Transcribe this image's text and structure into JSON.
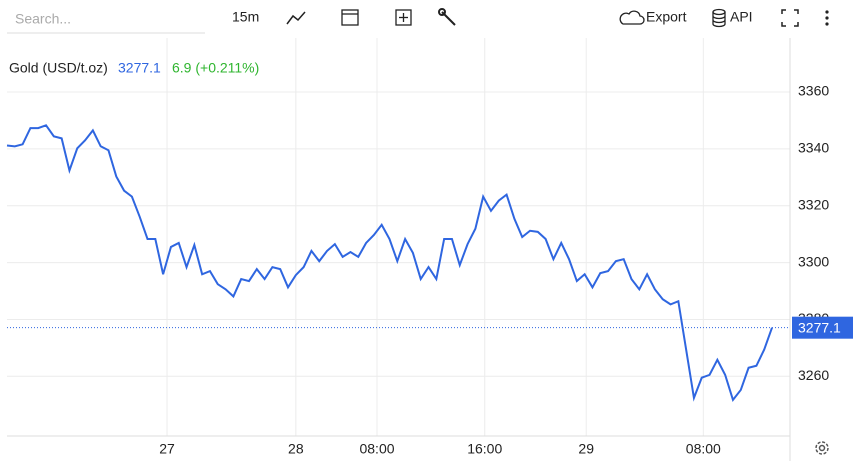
{
  "toolbar": {
    "search_placeholder": "Search...",
    "interval": "15m",
    "export": "Export",
    "api": "API"
  },
  "chart_data": {
    "type": "line",
    "legend_name": "Gold (USD/t.oz)",
    "change": "6.9 (+0.211%)",
    "series": [
      {
        "name": "Gold (USD/t.oz)",
        "color": "#2f66e0",
        "values": [
          3341.2,
          3340.9,
          3341.6,
          3347.3,
          3347.3,
          3348.3,
          3344.4,
          3343.7,
          3332.4,
          3340.2,
          3343.0,
          3346.5,
          3340.9,
          3339.5,
          3330.3,
          3325.3,
          3323.2,
          3316.1,
          3308.3,
          3308.3,
          3295.9,
          3305.5,
          3306.9,
          3298.4,
          3306.2,
          3295.9,
          3297.0,
          3292.4,
          3290.6,
          3288.1,
          3294.2,
          3293.5,
          3297.7,
          3294.2,
          3298.4,
          3297.7,
          3291.3,
          3295.6,
          3298.4,
          3304.1,
          3300.5,
          3304.1,
          3306.5,
          3302.0,
          3303.7,
          3302.0,
          3306.9,
          3309.7,
          3313.3,
          3308.3,
          3300.5,
          3308.3,
          3303.4,
          3294.2,
          3298.4,
          3294.2,
          3308.3,
          3308.3,
          3299.1,
          3306.5,
          3311.9,
          3323.2,
          3318.2,
          3321.8,
          3323.9,
          3315.4,
          3309.0,
          3311.2,
          3310.8,
          3308.3,
          3301.2,
          3306.9,
          3301.2,
          3293.5,
          3295.9,
          3291.3,
          3296.3,
          3297.0,
          3300.5,
          3301.2,
          3294.2,
          3290.6,
          3295.9,
          3290.6,
          3287.1,
          3285.3,
          3286.4,
          3269.4,
          3252.4,
          3259.5,
          3260.5,
          3265.8,
          3260.5,
          3251.7,
          3255.2,
          3263.0,
          3263.7,
          3269.4,
          3277.1
        ]
      }
    ],
    "xlim": [
      0,
      98
    ],
    "xticks": [
      {
        "value": 20.5,
        "label": "27"
      },
      {
        "value": 37,
        "label": "28"
      },
      {
        "value": 47.4,
        "label": "08:00"
      },
      {
        "value": 61.2,
        "label": "16:00"
      },
      {
        "value": 74.2,
        "label": "29"
      },
      {
        "value": 89.2,
        "label": "08:00"
      }
    ],
    "ylim": [
      3239,
      3379
    ],
    "yticks": [
      3260,
      3280,
      3300,
      3320,
      3340,
      3360
    ],
    "grid": true
  }
}
